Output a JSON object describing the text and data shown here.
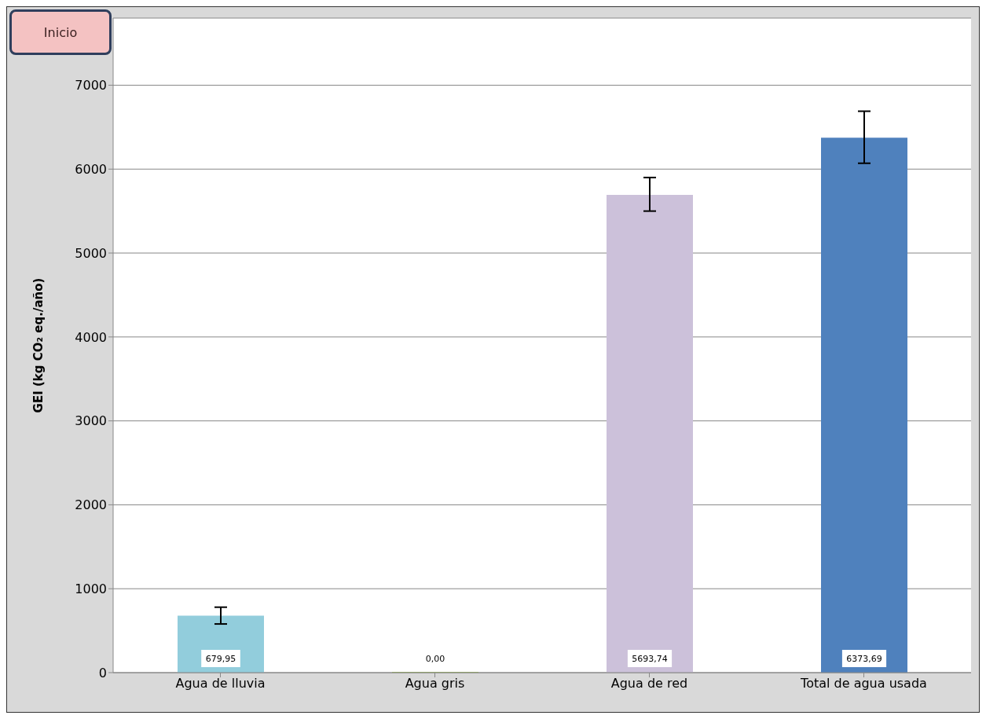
{
  "chart_data": {
    "type": "bar",
    "ylabel": "GEI (kg CO₂ eq./año)",
    "categories": [
      "Agua de lluvia",
      "Agua gris",
      "Agua de red",
      "Total de agua usada"
    ],
    "values": [
      679.95,
      0,
      5693.74,
      6373.69
    ],
    "colors": [
      "#92cddc",
      "#9bbb59",
      "#ccc1da",
      "#4f81bd"
    ],
    "errors": [
      [
        580,
        780
      ],
      null,
      [
        5500,
        5900
      ],
      [
        6070,
        6690
      ]
    ],
    "value_labels": [
      "679,95",
      "0,00",
      "5693,74",
      "6373,69"
    ],
    "ylim": [
      0,
      7800
    ],
    "yticks": [
      0,
      1000,
      2000,
      3000,
      4000,
      5000,
      6000,
      7000
    ],
    "grid": "y",
    "annotations": [
      "Inicio"
    ]
  }
}
